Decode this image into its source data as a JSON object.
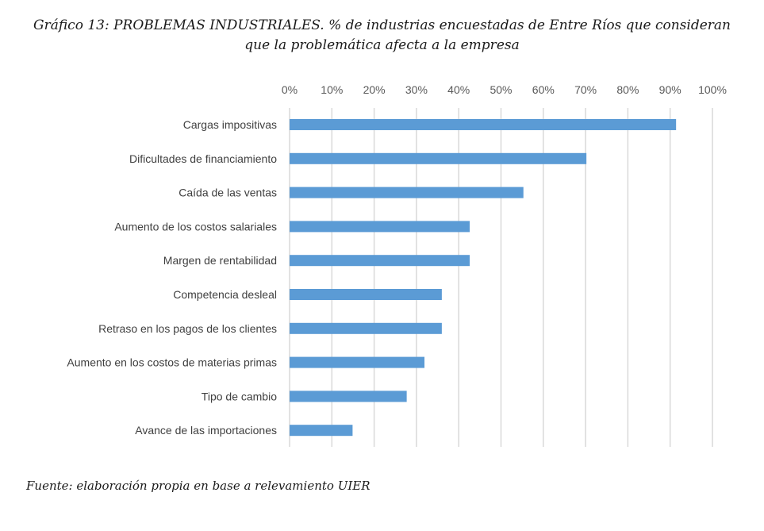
{
  "title_line1": "Gráfico 13: PROBLEMAS INDUSTRIALES. % de industrias encuestadas de Entre Ríos que consideran",
  "title_line2": "que la problemática afecta a la empresa",
  "source": "Fuente: elaboración propia en base a relevamiento UIER",
  "colors": {
    "bar": "#5B9BD5",
    "grid": "#D9D9D9"
  },
  "chart_data": {
    "type": "bar",
    "orientation": "horizontal",
    "title": "Gráfico 13: PROBLEMAS INDUSTRIALES. % de industrias encuestadas de Entre Ríos que consideran que la problemática afecta a la empresa",
    "xlabel": "",
    "ylabel": "",
    "xlim": [
      0,
      100
    ],
    "x_ticks": [
      "0%",
      "10%",
      "20%",
      "30%",
      "40%",
      "50%",
      "60%",
      "70%",
      "80%",
      "90%",
      "100%"
    ],
    "x_axis_position": "top",
    "grid": true,
    "legend": "none",
    "categories": [
      "Cargas impositivas",
      "Dificultades de financiamiento",
      "Caída de las ventas",
      "Aumento de los costos salariales",
      "Margen de rentabilidad",
      "Competencia desleal",
      "Retraso en los pagos de los clientes",
      "Aumento en los costos de materias primas",
      "Tipo de cambio",
      "Avance de las importaciones"
    ],
    "values": [
      91.4,
      70.2,
      55.3,
      42.6,
      42.6,
      36.0,
      36.0,
      31.9,
      27.7,
      14.9
    ],
    "unit": "%"
  }
}
